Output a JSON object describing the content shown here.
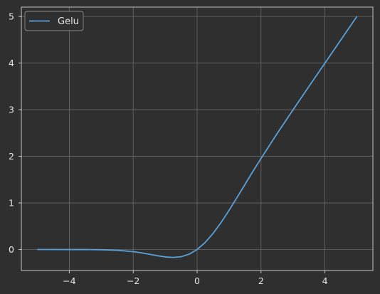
{
  "chart_data": {
    "type": "line",
    "title": "",
    "xlabel": "",
    "ylabel": "",
    "xlim": [
      -5.5,
      5.5
    ],
    "ylim": [
      -0.45,
      5.2
    ],
    "x_ticks": [
      -4,
      -2,
      0,
      2,
      4
    ],
    "x_tick_labels": [
      "−4",
      "−2",
      "0",
      "2",
      "4"
    ],
    "y_ticks": [
      0,
      1,
      2,
      3,
      4,
      5
    ],
    "y_tick_labels": [
      "0",
      "1",
      "2",
      "3",
      "4",
      "5"
    ],
    "grid": true,
    "legend_position": "top-left",
    "series": [
      {
        "name": "Gelu",
        "color": "#5aa0d8",
        "x": [
          -5.0,
          -4.5,
          -4.0,
          -3.5,
          -3.0,
          -2.5,
          -2.0,
          -1.75,
          -1.5,
          -1.25,
          -1.0,
          -0.75,
          -0.5,
          -0.25,
          0.0,
          0.25,
          0.5,
          0.75,
          1.0,
          1.25,
          1.5,
          1.75,
          2.0,
          2.5,
          3.0,
          3.5,
          4.0,
          4.5,
          5.0
        ],
        "y": [
          0.0,
          0.0,
          -0.0001,
          -0.0008,
          -0.004,
          -0.0155,
          -0.0455,
          -0.0701,
          -0.1002,
          -0.132,
          -0.1587,
          -0.17,
          -0.1543,
          -0.0995,
          0.0,
          0.1505,
          0.3457,
          0.58,
          0.8413,
          1.118,
          1.3998,
          1.6799,
          1.9545,
          2.4845,
          2.996,
          3.4992,
          3.9999,
          4.5,
          5.0
        ]
      }
    ],
    "colors": {
      "background": "#2f2f2f",
      "axes_edge": "#d8d8d8",
      "grid": "#6a6a6a",
      "legend_face": "#2f2f2f",
      "legend_edge": "#888888"
    }
  }
}
